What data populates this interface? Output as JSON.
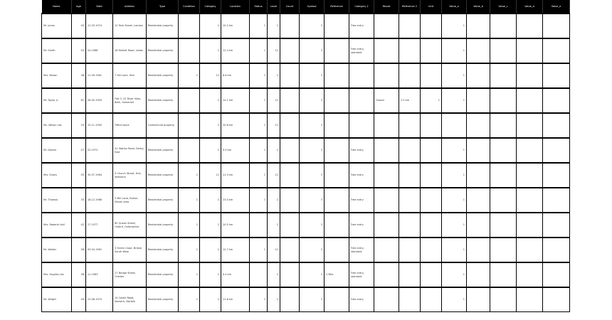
{
  "table": {
    "columns": [
      "Name",
      "Age",
      "Date",
      "Address",
      "Type",
      "Condition",
      "Category",
      "Location",
      "Status",
      "Level",
      "Count",
      "Symbol",
      "Reference",
      "Category 2",
      "Result",
      "Reference 2",
      "Unit",
      "Value_a",
      "Value_b",
      "Value_c",
      "Value_d",
      "Value_e"
    ],
    "widths": [
      42,
      20,
      38,
      47,
      45,
      30,
      30,
      40,
      25,
      18,
      27,
      35,
      35,
      35,
      35,
      30,
      30,
      35,
      33,
      37,
      37,
      38
    ],
    "rows": [
      [
        "Mr. Jones",
        "45",
        "12.03.1974",
        "12 Park Street, London",
        "Residential property",
        null,
        "1",
        "10.2 km",
        "1",
        "1",
        null,
        "3",
        null,
        "Free entry",
        null,
        null,
        null,
        "1",
        null,
        null,
        null,
        null
      ],
      [
        "Mr. Smith",
        "52",
        "04.1968",
        "18 Market Road, Leeds",
        "Residential property",
        null,
        "1",
        "12.4 km",
        "1",
        "11",
        null,
        "3",
        null,
        "Free entry, standard",
        null,
        null,
        null,
        "1",
        null,
        null,
        null,
        null
      ],
      [
        "Mrs. Brown",
        "38",
        "21.09.1981",
        "7 Hill Lane, York",
        "Residential property",
        "1",
        "11",
        "8.6 km",
        "1",
        "1",
        null,
        "3",
        null,
        null,
        null,
        null,
        null,
        "1",
        null,
        null,
        null,
        null
      ],
      [
        "Mr. Taylor Jr.",
        "61",
        "06.05.1959",
        "Flat 3, 22 River View, Bath, Somerset",
        "Residential property",
        null,
        "1",
        "14.1 km",
        "1",
        "11",
        null,
        "3",
        null,
        null,
        "Closed",
        "1.5 km",
        "1",
        "1",
        null,
        null,
        null,
        null
      ],
      [
        "Ms. Wilson Ltd.",
        "29",
        "15.11.1990",
        "Office block",
        "Commercial property",
        null,
        "1",
        "10.8 km",
        "1",
        "11",
        null,
        "3",
        null,
        null,
        null,
        null,
        null,
        null,
        null,
        null,
        null,
        null
      ],
      [
        "Mr. Davies",
        "47",
        "02.1972",
        "41 Station Road, Derby, East",
        "Residential property",
        null,
        "1",
        "9.9 km",
        "1",
        "1",
        null,
        "3",
        null,
        "Free entry",
        null,
        null,
        null,
        "1",
        null,
        null,
        null,
        null
      ],
      [
        "Mrs. Evans",
        "55",
        "30.07.1964",
        "9 Church Street, Hull, Yorkshire",
        "Residential property",
        "1",
        "11",
        "11.3 km",
        "1",
        "11",
        null,
        "3",
        null,
        "Free entry",
        null,
        null,
        null,
        "1",
        null,
        null,
        null,
        null
      ],
      [
        "Mr. Thomas",
        "33",
        "18.12.1986",
        "5 Mill Lane, Exeter, Devon area",
        "Residential property",
        "1",
        "1",
        "13.0 km",
        "1",
        "1",
        null,
        "3",
        null,
        "Free entry",
        null,
        null,
        null,
        "1",
        null,
        null,
        null,
        null
      ],
      [
        "Mrs. Roberts Hall",
        "42",
        "27.1977",
        "60 Queen Street, Oxford, Oxfordshire",
        "Residential property",
        "1",
        "1",
        "10.5 km",
        null,
        "1",
        null,
        "3",
        null,
        "Free entry",
        null,
        null,
        null,
        "1",
        null,
        null,
        null,
        null
      ],
      [
        "Mr. Walker",
        "58",
        "09.04.1961",
        "3 Green Close, Bristol, South West",
        "Residential property",
        "1",
        "1",
        "12.7 km",
        "1",
        "11",
        null,
        "3",
        null,
        "Free entry, standard",
        null,
        null,
        null,
        "1",
        null,
        null,
        null,
        null
      ],
      [
        "Mrs. Hughes Ltd.",
        "36",
        "11.1983",
        "27 Bridge Street, Chester",
        "Residential property",
        "1",
        "1",
        "9.4 km",
        null,
        "1",
        null,
        "3",
        "1 Mile",
        "Free entry, standard",
        null,
        null,
        null,
        "1",
        null,
        null,
        null,
        null
      ],
      [
        "Mr. Wright",
        "49",
        "23.08.1970",
        "14 Castle Road, Norwich, Norfolk",
        "Residential property",
        "1",
        "1",
        "11.8 km",
        "1",
        "1",
        null,
        "3",
        null,
        "Free entry",
        null,
        null,
        null,
        "1",
        null,
        null,
        null,
        null
      ]
    ]
  }
}
